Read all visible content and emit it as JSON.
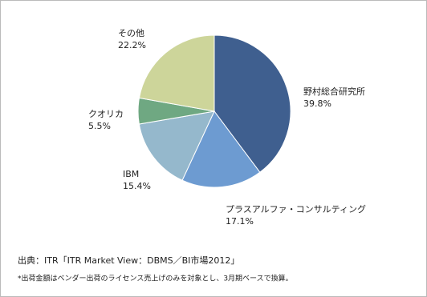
{
  "chart_data": {
    "type": "pie",
    "categories": [
      "野村総合研究所",
      "プラスアルファ・コンサルティング",
      "IBM",
      "クオリカ",
      "その他"
    ],
    "values": [
      39.8,
      17.1,
      15.4,
      5.5,
      22.2
    ],
    "value_labels": [
      "39.8%",
      "17.1%",
      "15.4%",
      "5.5%",
      "22.2%"
    ],
    "colors": [
      "#3f5f8f",
      "#6d9bd1",
      "#95b8cc",
      "#6fa882",
      "#cdd59a"
    ],
    "source": "出典：ITR「ITR Market View：DBMS／BI市場2012」",
    "note": "*出荷金額はベンダー出荷のライセンス売上げのみを対象とし、3月期ベースで換算。"
  }
}
